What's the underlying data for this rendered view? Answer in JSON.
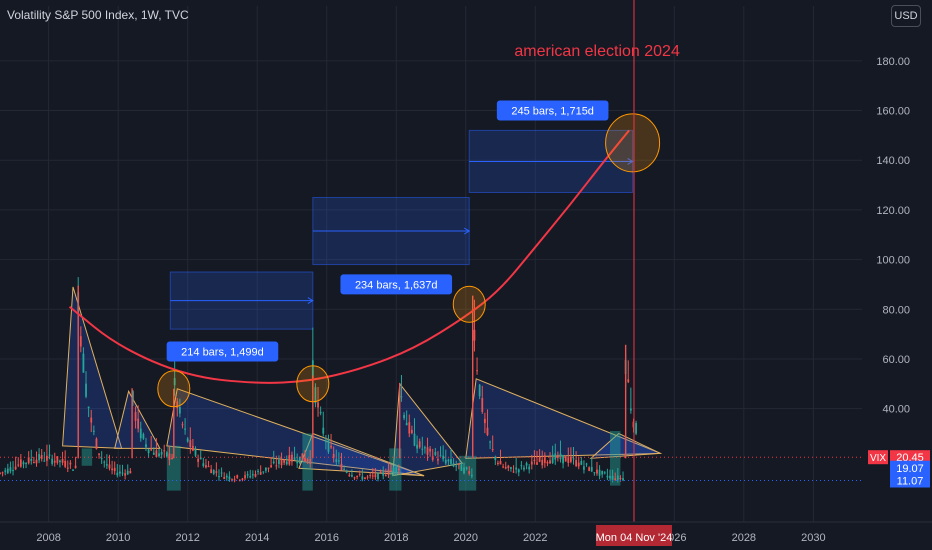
{
  "header": {
    "title": "Volatility S&P 500 Index, 1W, TVC",
    "currency": "USD"
  },
  "colors": {
    "background": "#151924",
    "candle_up": "#26a69a",
    "candle_down": "#ef5350",
    "curve": "#f23645",
    "box_fill": "#2962ff",
    "annotation_text": "#f23645",
    "triangle_edge": "#e0b060"
  },
  "chart_data": {
    "type": "candlestick",
    "title": "Volatility S&P 500 Index, 1W, TVC",
    "y_ticks": [
      "180.00",
      "160.00",
      "140.00",
      "120.00",
      "100.00",
      "80.00",
      "60.00",
      "40.00"
    ],
    "y_tick_values": [
      180,
      160,
      140,
      120,
      100,
      80,
      60,
      40
    ],
    "x_ticks": [
      "2008",
      "2010",
      "2012",
      "2014",
      "2016",
      "2018",
      "2020",
      "2022",
      "2026",
      "2028",
      "2030"
    ],
    "x_tick_values": [
      2008,
      2010,
      2012,
      2014,
      2016,
      2018,
      2020,
      2022,
      2026,
      2028,
      2030
    ],
    "ylim": [
      0,
      190
    ],
    "xlim": [
      2006.6,
      2031.4
    ],
    "series": [
      {
        "name": "VIX",
        "peaks": [
          {
            "x": 2008.85,
            "y": 89.5
          },
          {
            "x": 2010.4,
            "y": 48.2
          },
          {
            "x": 2011.6,
            "y": 48.0
          },
          {
            "x": 2015.6,
            "y": 53.3
          },
          {
            "x": 2018.1,
            "y": 50.3
          },
          {
            "x": 2020.2,
            "y": 85.5
          },
          {
            "x": 2024.6,
            "y": 65.7
          }
        ],
        "last": 20.45
      }
    ],
    "price_labels": [
      {
        "label": "VIX",
        "value": "20.45"
      },
      {
        "value": "19.07"
      },
      {
        "value": "11.07"
      }
    ],
    "curve_points": [
      {
        "x": 2008.6,
        "y": 81
      },
      {
        "x": 2010,
        "y": 65
      },
      {
        "x": 2012,
        "y": 53
      },
      {
        "x": 2014,
        "y": 50
      },
      {
        "x": 2015.5,
        "y": 51
      },
      {
        "x": 2017,
        "y": 56
      },
      {
        "x": 2018.5,
        "y": 64
      },
      {
        "x": 2020,
        "y": 77
      },
      {
        "x": 2021,
        "y": 88
      },
      {
        "x": 2022,
        "y": 105
      },
      {
        "x": 2023,
        "y": 122
      },
      {
        "x": 2024,
        "y": 140
      },
      {
        "x": 2024.7,
        "y": 152
      }
    ],
    "measures": [
      {
        "label": "214 bars, 1,499d",
        "x0": 2011.5,
        "x1": 2015.6,
        "y0": 72,
        "y1": 95,
        "label_x": 2013,
        "label_y": 63
      },
      {
        "label": "234 bars, 1,637d",
        "x0": 2015.6,
        "x1": 2020.1,
        "y0": 98,
        "y1": 125,
        "label_x": 2018,
        "label_y": 90
      },
      {
        "label": "245 bars, 1,715d",
        "x0": 2020.1,
        "x1": 2024.8,
        "y0": 127,
        "y1": 152,
        "label_x": 2022.5,
        "label_y": 160
      }
    ],
    "highlight_circles": [
      {
        "x": 2011.6,
        "y": 48
      },
      {
        "x": 2015.6,
        "y": 50
      },
      {
        "x": 2020.1,
        "y": 82
      },
      {
        "x": 2024.8,
        "y": 147
      }
    ],
    "annotation": "american election 2024",
    "event_line": {
      "x": 2024.84,
      "label": "Mon 04 Nov '24"
    }
  }
}
